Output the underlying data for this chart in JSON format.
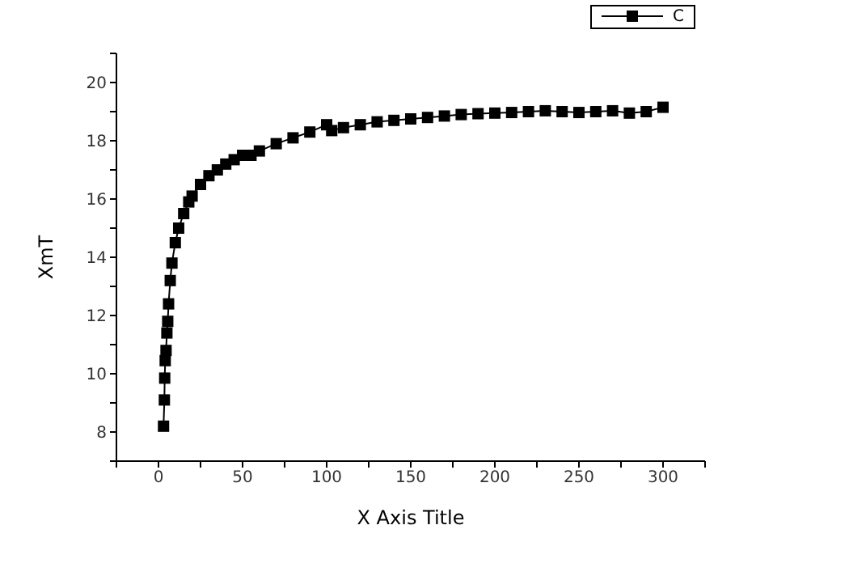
{
  "chart_data": {
    "type": "line",
    "xlabel": "X Axis Title",
    "ylabel": "XmT",
    "xlim": [
      -25,
      325
    ],
    "ylim": [
      7,
      21
    ],
    "xticks": [
      {
        "value": -25,
        "label": null
      },
      0,
      {
        "value": 25,
        "label": null
      },
      50,
      {
        "value": 75,
        "label": null
      },
      100,
      {
        "value": 125,
        "label": null
      },
      150,
      {
        "value": 175,
        "label": null
      },
      200,
      {
        "value": 225,
        "label": null
      },
      250,
      {
        "value": 275,
        "label": null
      },
      300,
      {
        "value": 325,
        "label": null
      }
    ],
    "yticks": [
      {
        "value": 7,
        "label": null
      },
      8,
      {
        "value": 9,
        "label": null
      },
      10,
      {
        "value": 11,
        "label": null
      },
      12,
      {
        "value": 13,
        "label": null
      },
      14,
      {
        "value": 15,
        "label": null
      },
      16,
      {
        "value": 17,
        "label": null
      },
      18,
      {
        "value": 19,
        "label": null
      },
      20,
      {
        "value": 21,
        "label": null
      }
    ],
    "x": [
      3,
      3.5,
      3.7,
      4,
      4.5,
      5,
      5.5,
      6,
      7,
      8,
      10,
      12,
      15,
      18,
      20,
      25,
      30,
      35,
      40,
      45,
      50,
      55,
      60,
      70,
      80,
      90,
      100,
      103,
      110,
      120,
      130,
      140,
      150,
      160,
      170,
      180,
      190,
      200,
      210,
      220,
      230,
      240,
      250,
      260,
      270,
      280,
      290,
      300
    ],
    "series": [
      {
        "name": "C",
        "color": "#000000",
        "values": [
          8.2,
          9.1,
          9.85,
          10.45,
          10.8,
          11.4,
          11.8,
          12.4,
          13.2,
          13.8,
          14.5,
          15.0,
          15.5,
          15.9,
          16.1,
          16.5,
          16.8,
          17.0,
          17.2,
          17.35,
          17.5,
          17.5,
          17.65,
          17.9,
          18.1,
          18.3,
          18.55,
          18.35,
          18.45,
          18.55,
          18.65,
          18.7,
          18.75,
          18.8,
          18.85,
          18.9,
          18.93,
          18.95,
          18.97,
          19.0,
          19.03,
          19.0,
          18.97,
          19.0,
          19.03,
          18.95,
          19.0,
          19.15
        ]
      }
    ],
    "marker": "square",
    "line_style": "solid",
    "grid": false,
    "legend": "top right"
  }
}
